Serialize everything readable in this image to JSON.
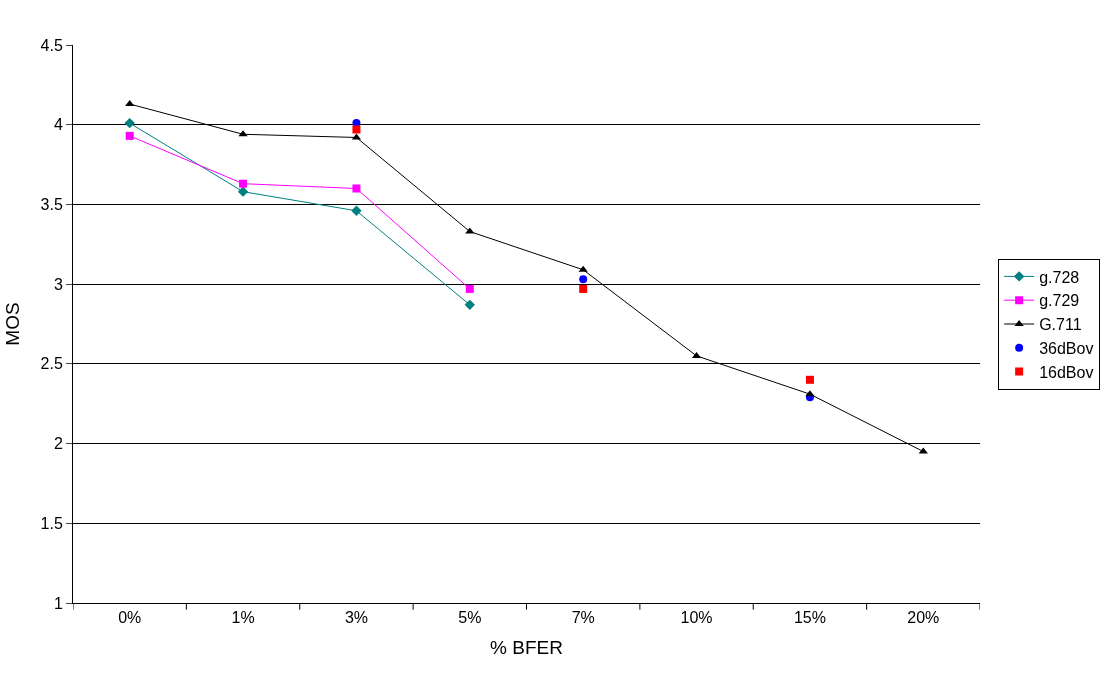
{
  "chart_data": {
    "type": "line",
    "xlabel": "% BFER",
    "ylabel": "MOS",
    "categories": [
      "0%",
      "1%",
      "3%",
      "5%",
      "7%",
      "10%",
      "15%",
      "20%"
    ],
    "series": [
      {
        "name": "g.728",
        "color": "#008080",
        "marker": "diamond",
        "values": [
          4.01,
          3.58,
          3.46,
          2.87,
          null,
          null,
          null,
          null
        ]
      },
      {
        "name": "g.729",
        "color": "#ff00ff",
        "marker": "square",
        "values": [
          3.93,
          3.63,
          3.6,
          2.97,
          null,
          null,
          null,
          null
        ]
      },
      {
        "name": "G.711",
        "color": "#000000",
        "marker": "triangle",
        "values": [
          4.13,
          3.94,
          3.92,
          3.33,
          3.09,
          2.55,
          2.31,
          1.95
        ]
      },
      {
        "name": "36dBov",
        "type": "scatter",
        "color": "#0000ff",
        "marker": "circle",
        "values": [
          null,
          null,
          4.01,
          null,
          3.03,
          null,
          2.29,
          null
        ]
      },
      {
        "name": "16dBov",
        "type": "scatter",
        "color": "#ff0000",
        "marker": "square",
        "values": [
          null,
          null,
          3.97,
          null,
          2.97,
          null,
          2.4,
          null
        ]
      }
    ],
    "ylim": [
      1,
      4.5
    ],
    "yticks": [
      1,
      1.5,
      2,
      2.5,
      3,
      3.5,
      4,
      4.5
    ],
    "grid": "y",
    "legend": "right",
    "line_style": "solid"
  }
}
